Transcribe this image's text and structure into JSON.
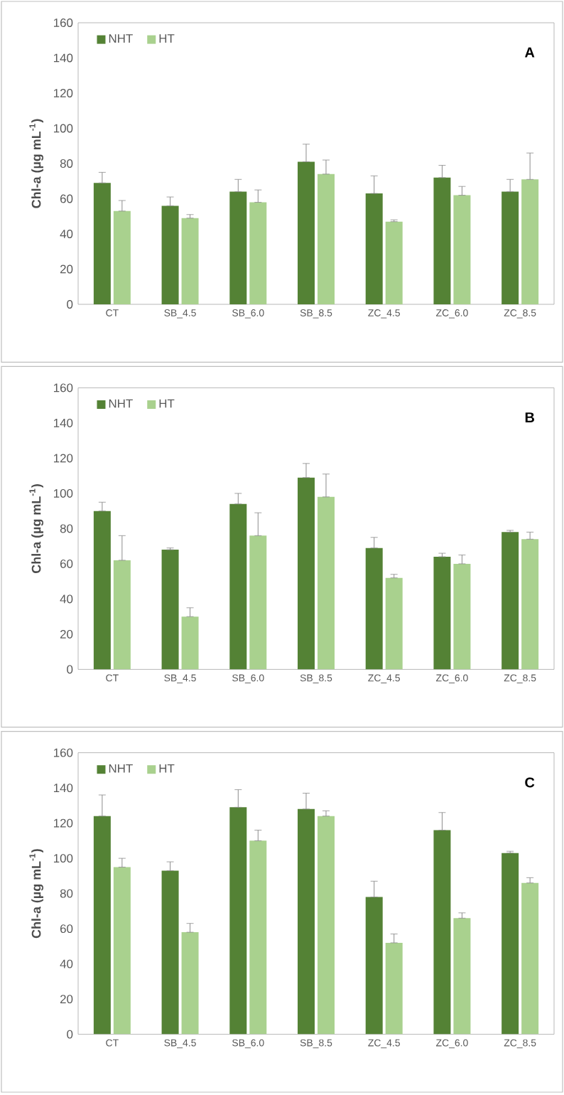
{
  "chart_data": [
    {
      "type": "bar",
      "ylabel": "Chl-a (µg mL$^{-1}$)",
      "annotations": [
        "A"
      ],
      "categories": [
        "CT",
        "SB_4.5",
        "SB_6.0",
        "SB_8.5",
        "ZC_4.5",
        "ZC_6.0",
        "ZC_8.5"
      ],
      "ylim": [
        0,
        160
      ],
      "yticks": [
        0,
        20,
        40,
        60,
        80,
        100,
        120,
        140,
        160
      ],
      "grid": false,
      "legend": "top left",
      "series": [
        {
          "name": "NHT",
          "color": "#548235",
          "values": [
            69,
            56,
            64,
            81,
            63,
            72,
            64
          ],
          "errors": [
            [
              69,
              75
            ],
            [
              56,
              61
            ],
            [
              64,
              71
            ],
            [
              81,
              91
            ],
            [
              63,
              73
            ],
            [
              72,
              79
            ],
            [
              64,
              71
            ]
          ]
        },
        {
          "name": "HT",
          "color": "#a9d18e",
          "values": [
            53,
            49,
            58,
            74,
            47,
            62,
            71
          ],
          "errors": [
            [
              53,
              59
            ],
            [
              49,
              51
            ],
            [
              58,
              65
            ],
            [
              74,
              82
            ],
            [
              47,
              48
            ],
            [
              62,
              67
            ],
            [
              71,
              86
            ]
          ]
        }
      ]
    },
    {
      "type": "bar",
      "ylabel": "Chl-a (µg mL$^{-1}$)",
      "annotations": [
        "B"
      ],
      "categories": [
        "CT",
        "SB_4.5",
        "SB_6.0",
        "SB_8.5",
        "ZC_4.5",
        "ZC_6.0",
        "ZC_8.5"
      ],
      "ylim": [
        0,
        160
      ],
      "yticks": [
        0,
        20,
        40,
        60,
        80,
        100,
        120,
        140,
        160
      ],
      "grid": false,
      "legend": "top left",
      "series": [
        {
          "name": "NHT",
          "color": "#548235",
          "values": [
            90,
            68,
            94,
            109,
            69,
            64,
            78
          ],
          "errors": [
            [
              90,
              95
            ],
            [
              68,
              69
            ],
            [
              94,
              100
            ],
            [
              109,
              117
            ],
            [
              69,
              75
            ],
            [
              64,
              66
            ],
            [
              78,
              79
            ]
          ]
        },
        {
          "name": "HT",
          "color": "#a9d18e",
          "values": [
            62,
            30,
            76,
            98,
            52,
            60,
            74
          ],
          "errors": [
            [
              62,
              76
            ],
            [
              30,
              35
            ],
            [
              76,
              89
            ],
            [
              98,
              111
            ],
            [
              52,
              54
            ],
            [
              60,
              65
            ],
            [
              74,
              78
            ]
          ]
        }
      ]
    },
    {
      "type": "bar",
      "ylabel": "Chl-a (µg mL$^{-1}$)",
      "annotations": [
        "C"
      ],
      "categories": [
        "CT",
        "SB_4.5",
        "SB_6.0",
        "SB_8.5",
        "ZC_4.5",
        "ZC_6.0",
        "ZC_8.5"
      ],
      "ylim": [
        0,
        160
      ],
      "yticks": [
        0,
        20,
        40,
        60,
        80,
        100,
        120,
        140,
        160
      ],
      "grid": false,
      "legend": "top left",
      "series": [
        {
          "name": "NHT",
          "color": "#548235",
          "values": [
            124,
            93,
            129,
            128,
            78,
            116,
            103
          ],
          "errors": [
            [
              124,
              136
            ],
            [
              93,
              98
            ],
            [
              129,
              139
            ],
            [
              128,
              137
            ],
            [
              78,
              87
            ],
            [
              116,
              126
            ],
            [
              103,
              104
            ]
          ]
        },
        {
          "name": "HT",
          "color": "#a9d18e",
          "values": [
            95,
            58,
            110,
            124,
            52,
            66,
            86
          ],
          "errors": [
            [
              95,
              100
            ],
            [
              58,
              63
            ],
            [
              110,
              116
            ],
            [
              124,
              127
            ],
            [
              52,
              57
            ],
            [
              66,
              69
            ],
            [
              86,
              89
            ]
          ]
        }
      ]
    }
  ]
}
